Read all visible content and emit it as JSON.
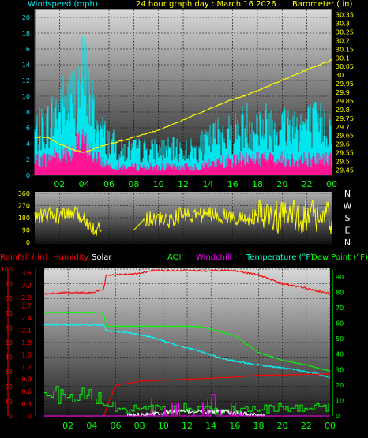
{
  "header": {
    "windspeed_label": "Windspeed (mph)",
    "title": "24 hour graph day : March 16 2026",
    "barometer_label": "Barometer ( in)"
  },
  "bottom_header": {
    "rainfall_label": "Rainfall (.in)",
    "humidity_label": "Humidity",
    "solar_label": "Solar",
    "aqi_label": "AQI",
    "windchill_label": "Windchill",
    "temperature_label": "Temperature (°F)",
    "dewpoint_label": "Dew Point (°F)"
  },
  "colors": {
    "wind_gust": "#00e5ee",
    "wind_avg": "#ff1493",
    "barometer": "#ffff00",
    "direction": "#ffff00",
    "humidity": "#ff0000",
    "temperature": "#00ffff",
    "dewpoint": "#00ff00",
    "rainfall": "#ff0000",
    "solar": "#ffffff",
    "windchill": "#ff00ff",
    "axis_time": "#00ff00"
  },
  "chart_data": [
    {
      "type": "line",
      "name": "wind-barometer",
      "x_ticks": [
        "02",
        "04",
        "06",
        "08",
        "10",
        "12",
        "14",
        "16",
        "18",
        "20",
        "22",
        "00"
      ],
      "wind_ticks": [
        "20",
        "18",
        "16",
        "14",
        "12",
        "10",
        "8",
        "6",
        "4",
        "2",
        "0"
      ],
      "wind_ylim": [
        0,
        21
      ],
      "baro_ticks": [
        "30.35",
        "30.3",
        "30.25",
        "30.2",
        "30.15",
        "30.1",
        "30.05",
        "30",
        "29.95",
        "29.9",
        "29.85",
        "29.8",
        "29.75",
        "29.7",
        "29.65",
        "29.6",
        "29.55",
        "29.5",
        "29.45"
      ],
      "baro_ylim": [
        29.42,
        30.38
      ],
      "series": [
        {
          "name": "Windspeed (mph)",
          "x": [
            0,
            1,
            2,
            3,
            4,
            5,
            6,
            7,
            8,
            9,
            10,
            11,
            12,
            13,
            14,
            15,
            16,
            17,
            18,
            19,
            20,
            21,
            22,
            23,
            24
          ],
          "values": [
            5,
            6,
            8,
            9,
            12,
            6,
            4,
            3,
            3,
            3,
            3,
            3,
            3,
            3,
            4,
            5,
            5,
            6,
            6,
            6,
            6,
            6,
            6,
            6,
            6
          ]
        },
        {
          "name": "Barometer ( in)",
          "x": [
            0,
            1,
            2,
            3,
            4,
            5,
            6,
            7,
            8,
            9,
            10,
            11,
            12,
            13,
            14,
            15,
            16,
            17,
            18,
            19,
            20,
            21,
            22,
            23,
            24
          ],
          "values": [
            29.64,
            29.64,
            29.6,
            29.57,
            29.55,
            29.58,
            29.6,
            29.62,
            29.64,
            29.66,
            29.68,
            29.71,
            29.74,
            29.77,
            29.8,
            29.83,
            29.86,
            29.88,
            29.91,
            29.94,
            29.97,
            30.0,
            30.03,
            30.06,
            30.09
          ]
        }
      ]
    },
    {
      "type": "line",
      "name": "wind-direction",
      "y_ticks": [
        "360",
        "270",
        "180",
        "90",
        "0"
      ],
      "compass": [
        "N",
        "W",
        "S",
        "E",
        "N"
      ],
      "ylim": [
        0,
        360
      ],
      "x": [
        0,
        1,
        2,
        3,
        4,
        5,
        6,
        7,
        8,
        9,
        10,
        11,
        12,
        13,
        14,
        15,
        16,
        17,
        18,
        19,
        20,
        21,
        22,
        23,
        24
      ],
      "values": [
        180,
        200,
        190,
        210,
        180,
        90,
        90,
        90,
        90,
        180,
        170,
        160,
        210,
        200,
        210,
        200,
        180,
        170,
        190,
        180,
        180,
        190,
        200,
        190,
        180
      ]
    },
    {
      "type": "line",
      "name": "weather",
      "x_ticks": [
        "02",
        "04",
        "06",
        "08",
        "10",
        "12",
        "14",
        "16",
        "18",
        "20",
        "22",
        "00"
      ],
      "humidity_ticks": [
        "100",
        "90",
        "80",
        "70",
        "60",
        "50",
        "40",
        "30",
        "20",
        "10",
        "0"
      ],
      "rain_ticks": [
        "3.5",
        "3.2",
        "2.9",
        "2.7",
        "2.4",
        "2.1",
        "1.8",
        "1.5",
        "1.2",
        "0.9",
        "0.6",
        "0.3",
        "0"
      ],
      "temp_ticks": [
        "90",
        "80",
        "70",
        "60",
        "50",
        "40",
        "30",
        "20",
        "10",
        "0"
      ],
      "series": [
        {
          "name": "Humidity",
          "x": [
            0,
            2,
            4,
            5,
            5.2,
            8,
            9,
            11,
            13,
            16,
            18,
            20,
            22,
            24
          ],
          "values": [
            83,
            84,
            84,
            86,
            96,
            97,
            99,
            99,
            99,
            99,
            96,
            90,
            87,
            83
          ]
        },
        {
          "name": "Temperature (°F)",
          "x": [
            0,
            2,
            4,
            5,
            5.2,
            7,
            9,
            11,
            13,
            15,
            17,
            19,
            21,
            23,
            24
          ],
          "values": [
            59,
            59,
            59,
            59,
            55,
            54,
            51,
            46,
            42,
            37,
            34,
            32,
            30,
            27,
            25
          ]
        },
        {
          "name": "Dew Point (°F)",
          "x": [
            0,
            2,
            4,
            5,
            5.2,
            7,
            10,
            13,
            16,
            18,
            20,
            22,
            24
          ],
          "values": [
            67,
            67,
            67,
            66,
            58,
            58,
            58,
            58,
            52,
            41,
            36,
            33,
            29
          ]
        },
        {
          "name": "Rainfall (.in)",
          "x": [
            0,
            5,
            5.5,
            6,
            8,
            12,
            16,
            18,
            20,
            22,
            24
          ],
          "values": [
            0,
            0,
            0.4,
            0.75,
            0.85,
            0.9,
            0.95,
            1.0,
            1.0,
            1.02,
            1.02
          ]
        },
        {
          "name": "AQI",
          "x": [
            0,
            1,
            2,
            3,
            4,
            5,
            6,
            8,
            10,
            12,
            14,
            16,
            18,
            20,
            22,
            24
          ],
          "values": [
            12,
            14,
            10,
            13,
            12,
            9,
            5,
            4,
            4,
            5,
            4,
            5,
            4,
            5,
            5,
            6
          ]
        }
      ]
    }
  ]
}
